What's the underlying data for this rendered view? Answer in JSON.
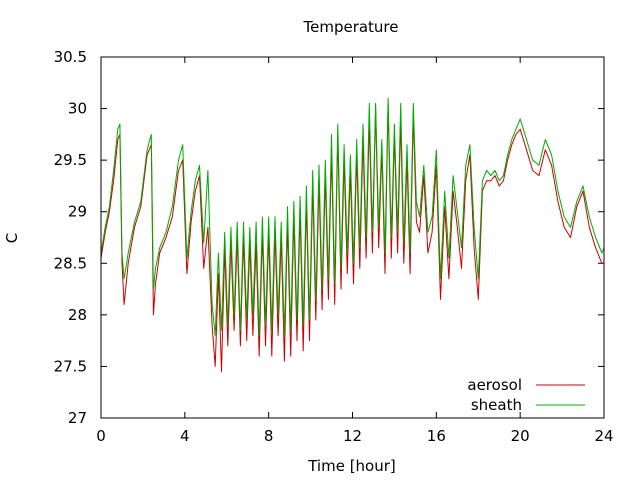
{
  "chart_data": {
    "type": "line",
    "title": "Temperature",
    "xlabel": "Time [hour]",
    "ylabel": "C",
    "xlim": [
      0,
      24
    ],
    "ylim": [
      27,
      30.5
    ],
    "xticks": [
      0,
      4,
      8,
      12,
      16,
      20,
      24
    ],
    "xtick_labels": [
      "0",
      "4",
      "8",
      "12",
      "16",
      "20",
      "24"
    ],
    "yticks": [
      27,
      27.5,
      28,
      28.5,
      29,
      29.5,
      30,
      30.5
    ],
    "ytick_labels": [
      "27",
      "27.5",
      "28",
      "28.5",
      "29",
      "29.5",
      "30",
      "30.5"
    ],
    "grid": false,
    "legend_position": "bottom-right",
    "series": [
      {
        "name": "aerosol",
        "color": "#cc0000",
        "x": [
          0,
          0.2,
          0.4,
          0.6,
          0.8,
          0.9,
          1.0,
          1.1,
          1.3,
          1.6,
          1.9,
          2.2,
          2.4,
          2.5,
          2.6,
          2.8,
          3.1,
          3.4,
          3.7,
          3.9,
          4.1,
          4.3,
          4.5,
          4.7,
          4.9,
          5.1,
          5.3,
          5.45,
          5.6,
          5.75,
          5.9,
          6.05,
          6.2,
          6.35,
          6.5,
          6.65,
          6.8,
          6.95,
          7.1,
          7.25,
          7.4,
          7.55,
          7.7,
          7.85,
          8.0,
          8.15,
          8.3,
          8.45,
          8.6,
          8.75,
          8.9,
          9.05,
          9.2,
          9.35,
          9.5,
          9.65,
          9.8,
          9.95,
          10.1,
          10.25,
          10.4,
          10.55,
          10.7,
          10.85,
          11.0,
          11.15,
          11.3,
          11.45,
          11.6,
          11.75,
          11.9,
          12.05,
          12.2,
          12.35,
          12.5,
          12.65,
          12.8,
          12.95,
          13.1,
          13.25,
          13.4,
          13.55,
          13.7,
          13.85,
          14.0,
          14.15,
          14.3,
          14.45,
          14.6,
          14.75,
          14.9,
          15.05,
          15.2,
          15.4,
          15.6,
          15.8,
          16.0,
          16.2,
          16.4,
          16.6,
          16.8,
          17.0,
          17.2,
          17.4,
          17.6,
          17.8,
          18.0,
          18.2,
          18.4,
          18.6,
          18.8,
          19.0,
          19.2,
          19.4,
          19.6,
          19.8,
          20.0,
          20.3,
          20.6,
          20.9,
          21.2,
          21.5,
          21.8,
          22.1,
          22.4,
          22.7,
          23.0,
          23.3,
          23.6,
          23.9,
          24.0
        ],
        "y": [
          28.55,
          28.8,
          29.0,
          29.3,
          29.7,
          29.75,
          28.5,
          28.1,
          28.5,
          28.85,
          29.05,
          29.55,
          29.65,
          28.0,
          28.3,
          28.6,
          28.75,
          28.95,
          29.4,
          29.5,
          28.4,
          28.9,
          29.2,
          29.35,
          28.45,
          28.85,
          27.9,
          27.5,
          28.4,
          27.45,
          28.65,
          27.7,
          28.7,
          27.85,
          28.75,
          27.7,
          28.75,
          27.75,
          28.7,
          27.8,
          28.7,
          27.6,
          28.8,
          27.7,
          28.8,
          27.6,
          28.8,
          27.8,
          28.75,
          27.55,
          28.9,
          27.6,
          28.95,
          27.75,
          29.0,
          27.65,
          29.1,
          27.75,
          29.25,
          27.95,
          29.3,
          28.05,
          29.35,
          28.15,
          29.6,
          28.1,
          29.75,
          28.25,
          29.5,
          28.4,
          29.4,
          28.3,
          29.55,
          28.45,
          29.7,
          28.55,
          29.9,
          28.6,
          30.0,
          28.65,
          29.6,
          28.4,
          30.05,
          28.55,
          29.75,
          28.6,
          29.9,
          28.5,
          29.5,
          28.4,
          29.95,
          28.9,
          28.8,
          29.35,
          28.6,
          28.8,
          29.45,
          28.15,
          29.05,
          28.35,
          29.2,
          28.85,
          28.45,
          29.3,
          29.55,
          28.65,
          28.15,
          29.2,
          29.3,
          29.3,
          29.35,
          29.25,
          29.3,
          29.5,
          29.65,
          29.75,
          29.8,
          29.6,
          29.4,
          29.35,
          29.6,
          29.45,
          29.1,
          28.85,
          28.75,
          29.05,
          29.2,
          28.85,
          28.65,
          28.5,
          28.5
        ]
      },
      {
        "name": "sheath",
        "color": "#00aa00",
        "x": [
          0,
          0.2,
          0.4,
          0.6,
          0.8,
          0.9,
          1.0,
          1.1,
          1.3,
          1.6,
          1.9,
          2.2,
          2.4,
          2.5,
          2.6,
          2.8,
          3.1,
          3.4,
          3.7,
          3.9,
          4.1,
          4.3,
          4.5,
          4.7,
          4.9,
          5.1,
          5.3,
          5.45,
          5.6,
          5.75,
          5.9,
          6.05,
          6.2,
          6.35,
          6.5,
          6.65,
          6.8,
          6.95,
          7.1,
          7.25,
          7.4,
          7.55,
          7.7,
          7.85,
          8.0,
          8.15,
          8.3,
          8.45,
          8.6,
          8.75,
          8.9,
          9.05,
          9.2,
          9.35,
          9.5,
          9.65,
          9.8,
          9.95,
          10.1,
          10.25,
          10.4,
          10.55,
          10.7,
          10.85,
          11.0,
          11.15,
          11.3,
          11.45,
          11.6,
          11.75,
          11.9,
          12.05,
          12.2,
          12.35,
          12.5,
          12.65,
          12.8,
          12.95,
          13.1,
          13.25,
          13.4,
          13.55,
          13.7,
          13.85,
          14.0,
          14.15,
          14.3,
          14.45,
          14.6,
          14.75,
          14.9,
          15.05,
          15.2,
          15.4,
          15.6,
          15.8,
          16.0,
          16.2,
          16.4,
          16.6,
          16.8,
          17.0,
          17.2,
          17.4,
          17.6,
          17.8,
          18.0,
          18.2,
          18.4,
          18.6,
          18.8,
          19.0,
          19.2,
          19.4,
          19.6,
          19.8,
          20.0,
          20.3,
          20.6,
          20.9,
          21.2,
          21.5,
          21.8,
          22.1,
          22.4,
          22.7,
          23.0,
          23.3,
          23.6,
          23.9,
          24.0
        ],
        "y": [
          28.6,
          28.85,
          29.05,
          29.4,
          29.8,
          29.85,
          28.6,
          28.35,
          28.6,
          28.9,
          29.1,
          29.6,
          29.75,
          28.25,
          28.45,
          28.65,
          28.8,
          29.05,
          29.5,
          29.65,
          28.55,
          29.0,
          29.3,
          29.45,
          28.7,
          29.4,
          28.1,
          27.8,
          28.6,
          27.85,
          28.8,
          27.9,
          28.85,
          28.0,
          28.9,
          27.85,
          28.9,
          27.95,
          28.85,
          28.0,
          28.9,
          27.8,
          28.95,
          27.9,
          28.95,
          27.85,
          28.95,
          28.0,
          28.9,
          27.8,
          29.05,
          27.85,
          29.1,
          27.95,
          29.15,
          27.9,
          29.25,
          27.95,
          29.4,
          28.15,
          29.45,
          28.25,
          29.5,
          28.35,
          29.75,
          28.3,
          29.85,
          28.45,
          29.65,
          28.6,
          29.55,
          28.5,
          29.7,
          28.65,
          29.85,
          28.75,
          30.05,
          28.8,
          30.05,
          28.85,
          29.7,
          28.6,
          30.1,
          28.75,
          29.85,
          28.8,
          30.05,
          28.7,
          29.65,
          28.6,
          30.05,
          29.1,
          28.95,
          29.45,
          28.8,
          28.95,
          29.6,
          28.35,
          29.2,
          28.55,
          29.35,
          29.0,
          28.65,
          29.45,
          29.65,
          28.85,
          28.35,
          29.3,
          29.4,
          29.35,
          29.4,
          29.3,
          29.35,
          29.55,
          29.7,
          29.8,
          29.9,
          29.7,
          29.5,
          29.45,
          29.7,
          29.55,
          29.2,
          28.95,
          28.85,
          29.1,
          29.25,
          28.95,
          28.75,
          28.6,
          28.65
        ]
      }
    ]
  }
}
